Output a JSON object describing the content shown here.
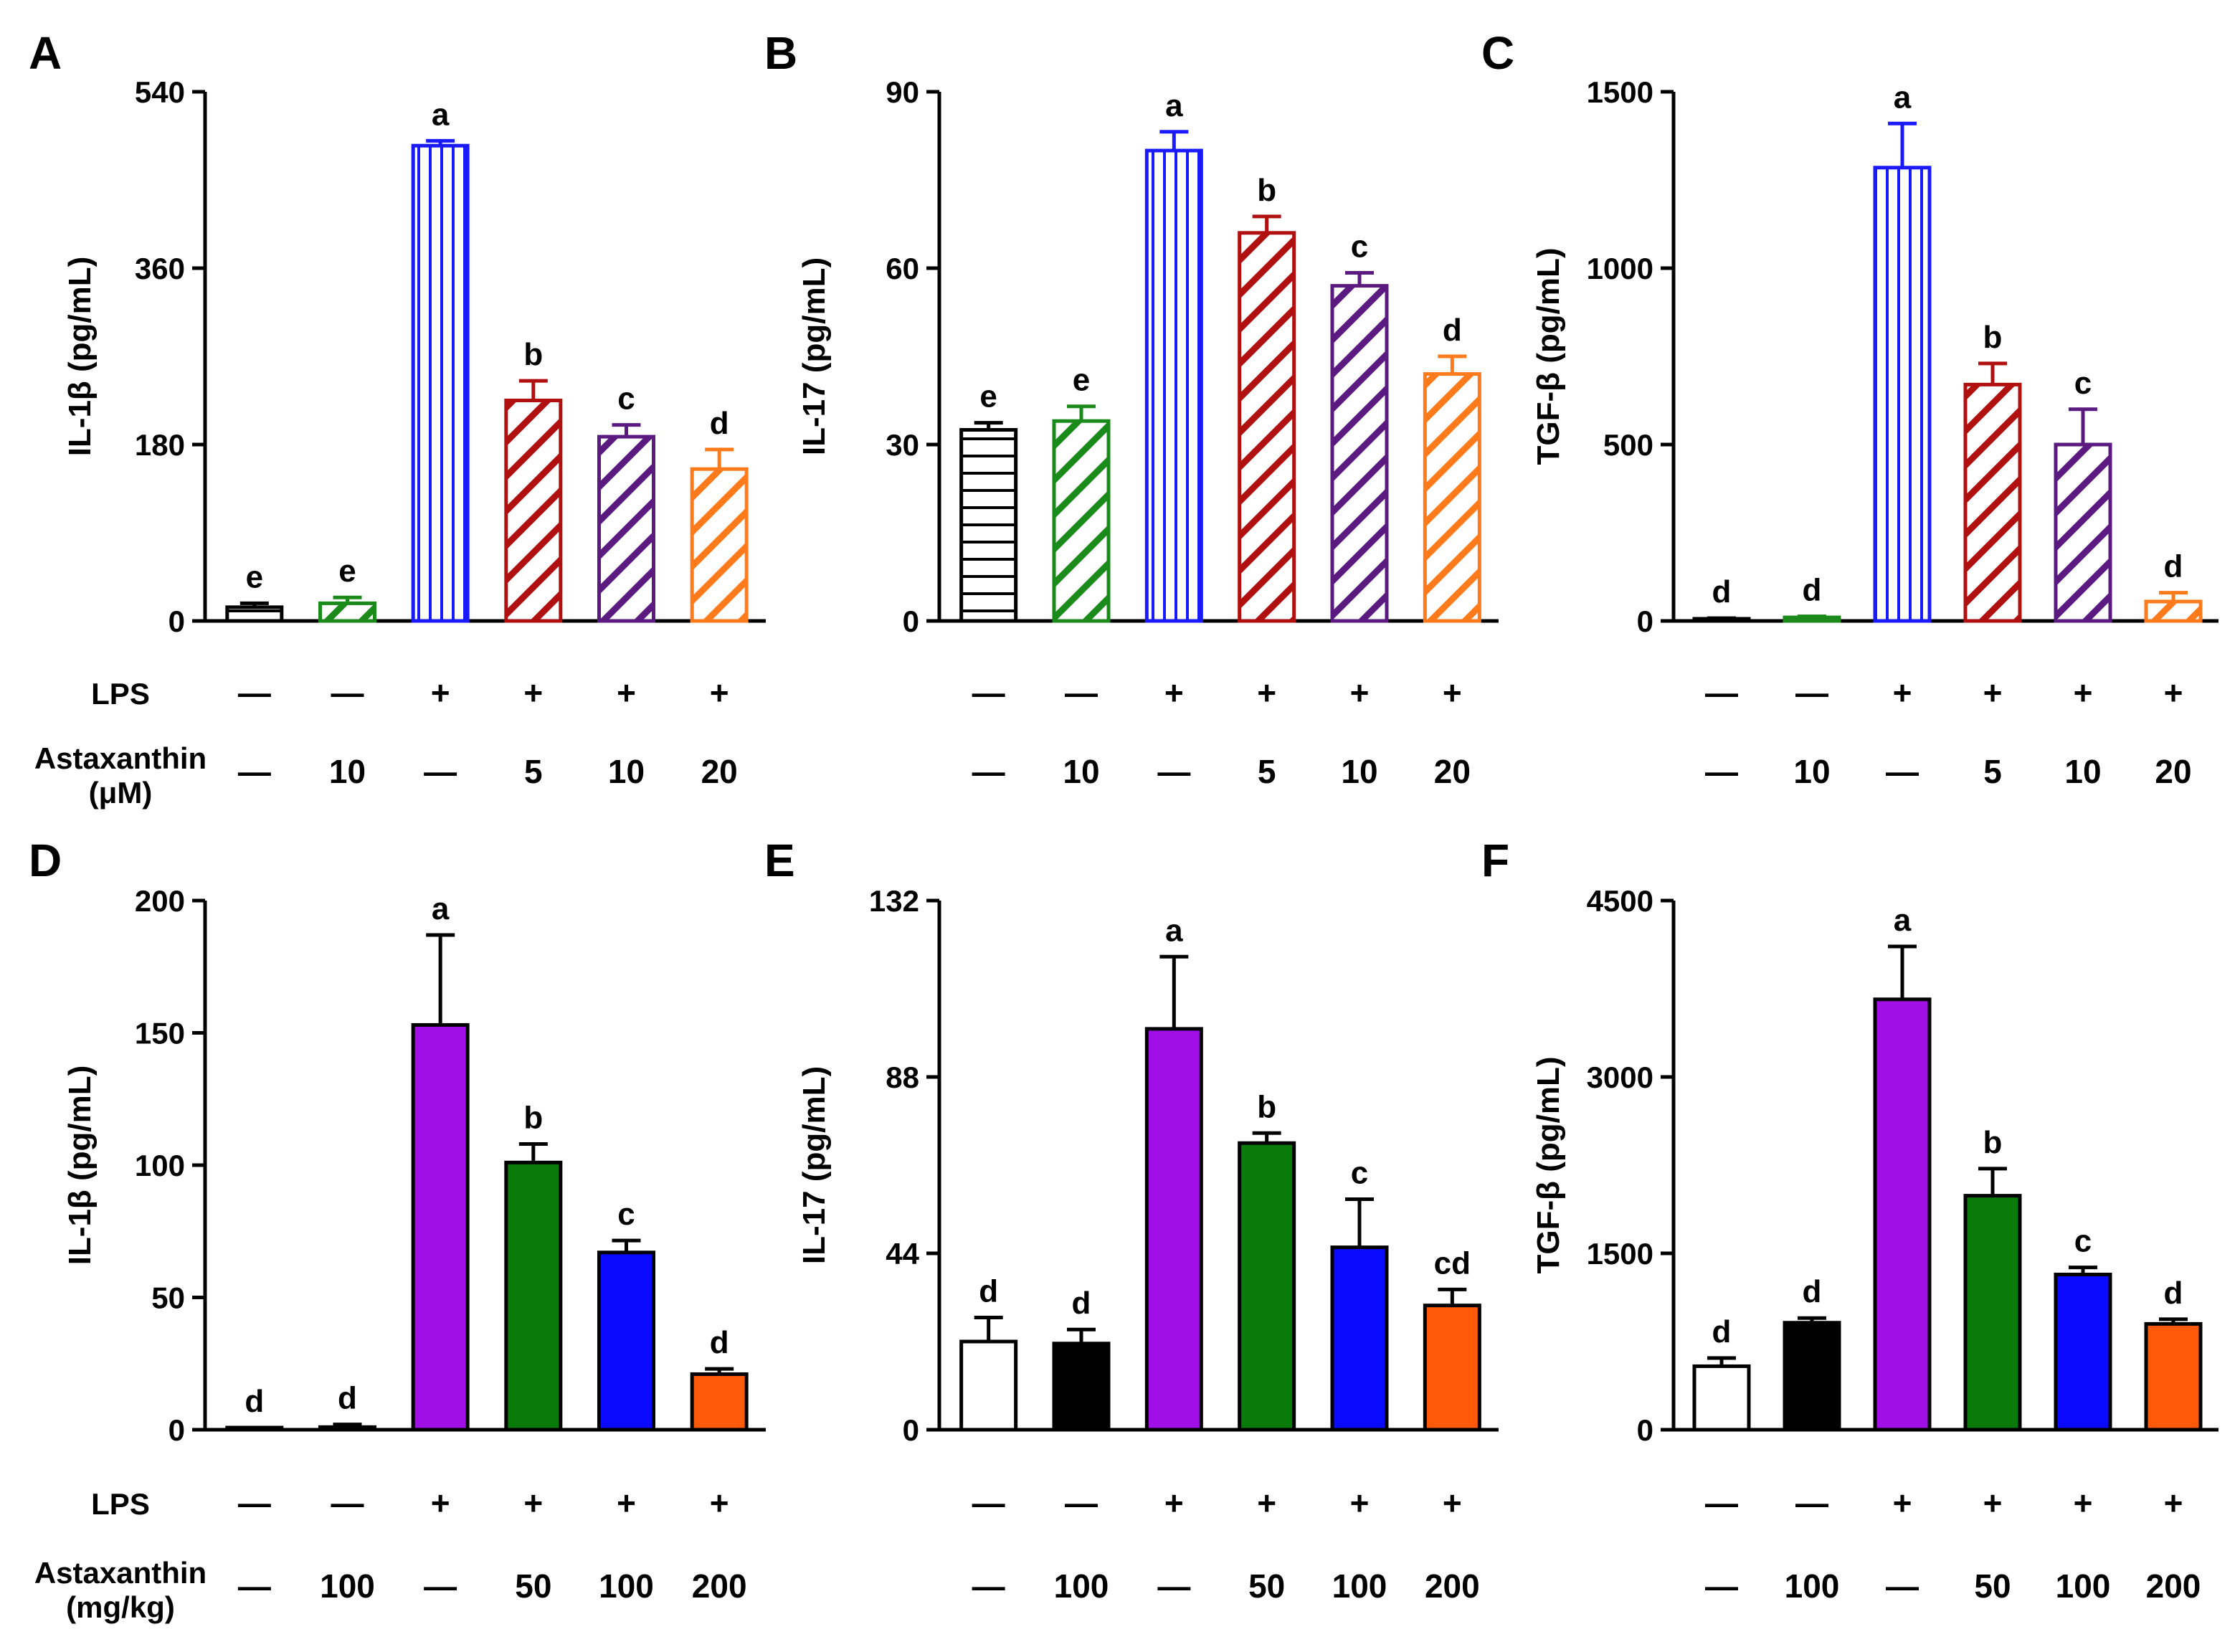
{
  "figure": {
    "row1": {
      "treatment_rows": [
        {
          "label": [
            "LPS"
          ],
          "values": [
            "—",
            "—",
            "+",
            "+",
            "+",
            "+"
          ]
        },
        {
          "label": [
            "Astaxanthin",
            "(μM)"
          ],
          "values": [
            "—",
            "10",
            "—",
            "5",
            "10",
            "20"
          ]
        }
      ]
    },
    "row2": {
      "treatment_rows": [
        {
          "label": [
            "LPS"
          ],
          "values": [
            "—",
            "—",
            "+",
            "+",
            "+",
            "+"
          ]
        },
        {
          "label": [
            "Astaxanthin",
            "(mg/kg)"
          ],
          "values": [
            "—",
            "100",
            "—",
            "50",
            "100",
            "200"
          ]
        }
      ]
    }
  },
  "chart_data": [
    {
      "panel": "A",
      "type": "bar",
      "ylabel": "IL-1β (pg/mL)",
      "ylim": [
        0,
        540
      ],
      "yticks": [
        0,
        180,
        360,
        540
      ],
      "values": [
        14,
        18,
        485,
        225,
        188,
        155
      ],
      "errors": [
        4,
        6,
        5,
        20,
        12,
        20
      ],
      "letters": [
        "e",
        "e",
        "a",
        "b",
        "c",
        "d"
      ],
      "colors": [
        "#000000",
        "#1a8a1a",
        "#1a1aff",
        "#b01010",
        "#5a1a80",
        "#ff7a1a"
      ],
      "patterns": [
        "hline",
        "diag",
        "vline",
        "diag",
        "diag",
        "diag"
      ]
    },
    {
      "panel": "B",
      "type": "bar",
      "ylabel": "IL-17 (pg/mL)",
      "ylim": [
        0,
        90
      ],
      "yticks": [
        0,
        30,
        60,
        90
      ],
      "values": [
        32.5,
        34,
        80,
        66,
        57,
        42
      ],
      "errors": [
        1.2,
        2.5,
        3.2,
        2.8,
        2.2,
        3.0
      ],
      "letters": [
        "e",
        "e",
        "a",
        "b",
        "c",
        "d"
      ],
      "colors": [
        "#000000",
        "#1a8a1a",
        "#1a1aff",
        "#b01010",
        "#5a1a80",
        "#ff7a1a"
      ],
      "patterns": [
        "hline",
        "diag",
        "vline",
        "diag",
        "diag",
        "diag"
      ]
    },
    {
      "panel": "C",
      "type": "bar",
      "ylabel": "TGF-β (pg/mL)",
      "ylim": [
        0,
        1500
      ],
      "yticks": [
        0,
        500,
        1000,
        1500
      ],
      "values": [
        5,
        10,
        1285,
        670,
        500,
        55
      ],
      "errors": [
        3,
        3,
        125,
        60,
        100,
        25
      ],
      "letters": [
        "d",
        "d",
        "a",
        "b",
        "c",
        "d"
      ],
      "colors": [
        "#000000",
        "#1a8a1a",
        "#1a1aff",
        "#b01010",
        "#5a1a80",
        "#ff7a1a"
      ],
      "patterns": [
        "hline",
        "diag",
        "vline",
        "diag",
        "diag",
        "diag"
      ]
    },
    {
      "panel": "D",
      "type": "bar",
      "ylabel": "IL-1β (pg/mL)",
      "ylim": [
        0,
        200
      ],
      "yticks": [
        0,
        50,
        100,
        150,
        200
      ],
      "values": [
        0.5,
        1,
        153,
        101,
        67,
        21
      ],
      "errors": [
        0.3,
        1,
        34,
        7,
        4.5,
        2
      ],
      "letters": [
        "d",
        "d",
        "a",
        "b",
        "c",
        "d"
      ],
      "colors": [
        "#ffffff",
        "#000000",
        "#a010e6",
        "#0a7a0a",
        "#0a0aff",
        "#ff5a0a"
      ],
      "patterns": [
        "solid",
        "solid",
        "solid",
        "solid",
        "solid",
        "solid"
      ]
    },
    {
      "panel": "E",
      "type": "bar",
      "ylabel": "IL-17 (pg/mL)",
      "ylim": [
        0,
        132
      ],
      "yticks": [
        0,
        44,
        88,
        132
      ],
      "values": [
        22,
        21.5,
        100,
        71.5,
        45.5,
        31
      ],
      "errors": [
        6,
        3.5,
        18,
        2.5,
        12,
        4
      ],
      "letters": [
        "d",
        "d",
        "a",
        "b",
        "c",
        "cd"
      ],
      "colors": [
        "#ffffff",
        "#000000",
        "#a010e6",
        "#0a7a0a",
        "#0a0aff",
        "#ff5a0a"
      ],
      "patterns": [
        "solid",
        "solid",
        "solid",
        "solid",
        "solid",
        "solid"
      ]
    },
    {
      "panel": "F",
      "type": "bar",
      "ylabel": "TGF-β (pg/mL)",
      "ylim": [
        0,
        4500
      ],
      "yticks": [
        0,
        1500,
        3000,
        4500
      ],
      "values": [
        540,
        910,
        3660,
        1990,
        1320,
        900
      ],
      "errors": [
        70,
        40,
        450,
        230,
        60,
        40
      ],
      "letters": [
        "d",
        "d",
        "a",
        "b",
        "c",
        "d"
      ],
      "colors": [
        "#ffffff",
        "#000000",
        "#a010e6",
        "#0a7a0a",
        "#0a0aff",
        "#ff5a0a"
      ],
      "patterns": [
        "solid",
        "solid",
        "solid",
        "solid",
        "solid",
        "solid"
      ]
    }
  ]
}
